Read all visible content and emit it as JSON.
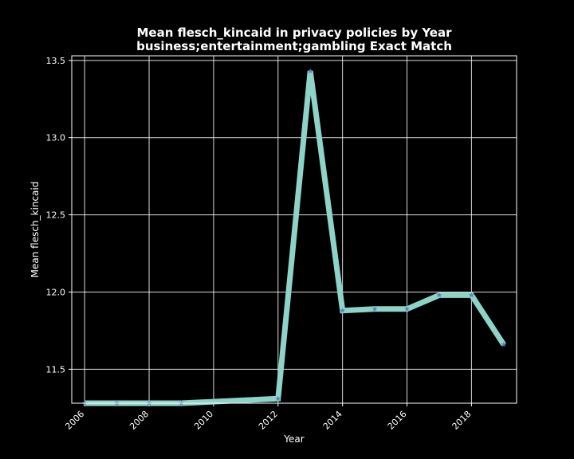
{
  "chart_data": {
    "type": "line",
    "title": "Mean flesch_kincaid in privacy policies by Year",
    "subtitle": "business;entertainment;gambling Exact Match",
    "xlabel": "Year",
    "ylabel": "Mean flesch_kincaid",
    "x": [
      2006,
      2007,
      2008,
      2009,
      2012,
      2013,
      2014,
      2015,
      2016,
      2017,
      2018,
      2019
    ],
    "series": [
      {
        "values": [
          11.28,
          11.28,
          11.28,
          11.28,
          11.31,
          13.43,
          11.88,
          11.89,
          11.89,
          11.98,
          11.98,
          11.66
        ]
      }
    ],
    "xlim": [
      2005.6,
      2019.4
    ],
    "ylim": [
      11.28,
      13.53
    ],
    "xticks": [
      "2006",
      "2008",
      "2010",
      "2012",
      "2014",
      "2016",
      "2018"
    ],
    "yticks": [
      "11.5",
      "12.0",
      "12.5",
      "13.0",
      "13.5"
    ],
    "grid": true,
    "colors": {
      "line": "#8dd3c7",
      "marker": "#5b7fb8",
      "background": "#000000",
      "text": "#ffffff"
    }
  }
}
